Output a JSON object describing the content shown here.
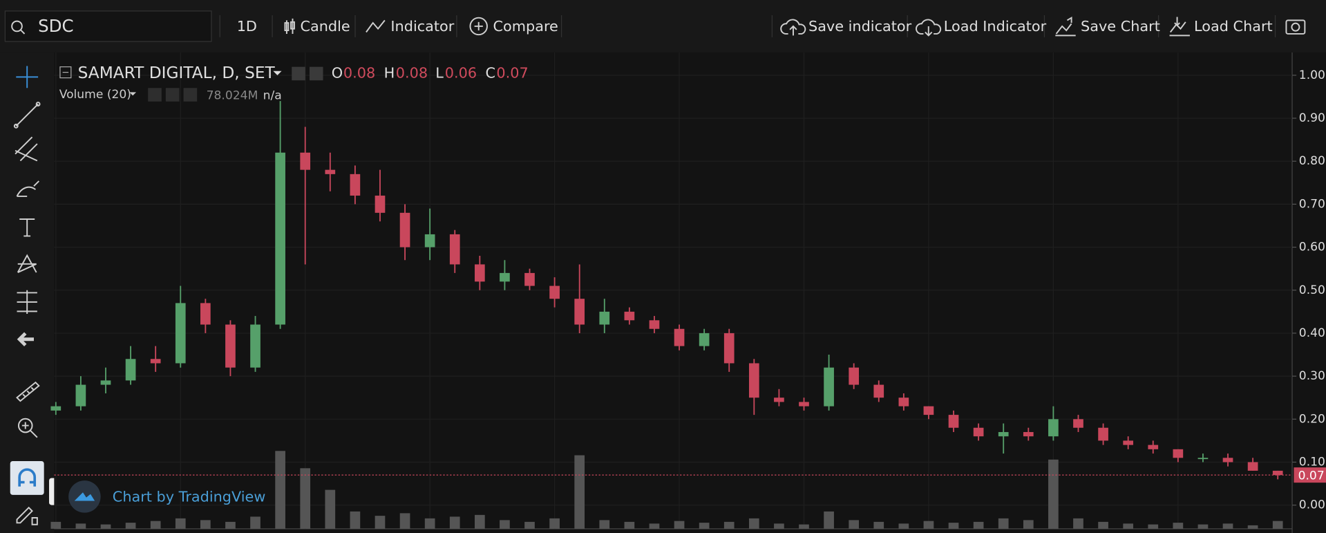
{
  "toolbar": {
    "symbol": "SDC",
    "interval": "1D",
    "chart_type": "Candle",
    "indicator": "Indicator",
    "compare": "Compare",
    "save_indicator": "Save indicator",
    "load_indicator": "Load Indicator",
    "save_chart": "Save Chart",
    "load_chart": "Load Chart"
  },
  "chart_data": {
    "type": "candlestick",
    "title": "SAMART DIGITAL, D, SET",
    "legend": {
      "o_label": "O",
      "open": 0.08,
      "h_label": "H",
      "high": 0.08,
      "l_label": "L",
      "low": 0.06,
      "c_label": "C",
      "close": 0.07
    },
    "volume_title": "Volume (20)",
    "volume_value": "78.024M",
    "volume_ma": "n/a",
    "open": [
      0.22,
      0.23,
      0.28,
      0.29,
      0.34,
      0.33,
      0.47,
      0.42,
      0.32,
      0.42,
      0.82,
      0.78,
      0.77,
      0.72,
      0.68,
      0.6,
      0.63,
      0.56,
      0.52,
      0.54,
      0.51,
      0.48,
      0.42,
      0.45,
      0.43,
      0.41,
      0.37,
      0.4,
      0.33,
      0.25,
      0.24,
      0.23,
      0.32,
      0.28,
      0.25,
      0.23,
      0.21,
      0.18,
      0.16,
      0.17,
      0.16,
      0.2,
      0.18,
      0.15,
      0.14,
      0.13,
      0.11,
      0.11,
      0.1,
      0.08
    ],
    "high": [
      0.24,
      0.3,
      0.32,
      0.37,
      0.37,
      0.51,
      0.48,
      0.43,
      0.44,
      0.94,
      0.88,
      0.82,
      0.79,
      0.78,
      0.7,
      0.69,
      0.64,
      0.58,
      0.57,
      0.55,
      0.53,
      0.56,
      0.48,
      0.46,
      0.44,
      0.42,
      0.41,
      0.41,
      0.34,
      0.27,
      0.25,
      0.35,
      0.33,
      0.29,
      0.26,
      0.23,
      0.22,
      0.19,
      0.19,
      0.18,
      0.23,
      0.21,
      0.19,
      0.16,
      0.15,
      0.13,
      0.12,
      0.12,
      0.11,
      0.08
    ],
    "low": [
      0.21,
      0.22,
      0.26,
      0.28,
      0.31,
      0.32,
      0.4,
      0.3,
      0.31,
      0.41,
      0.56,
      0.73,
      0.7,
      0.66,
      0.57,
      0.57,
      0.54,
      0.5,
      0.5,
      0.5,
      0.46,
      0.4,
      0.4,
      0.42,
      0.4,
      0.36,
      0.36,
      0.31,
      0.21,
      0.23,
      0.22,
      0.22,
      0.27,
      0.24,
      0.22,
      0.2,
      0.17,
      0.15,
      0.12,
      0.15,
      0.15,
      0.17,
      0.14,
      0.13,
      0.12,
      0.1,
      0.1,
      0.09,
      0.08,
      0.06
    ],
    "close": [
      0.23,
      0.28,
      0.29,
      0.34,
      0.33,
      0.47,
      0.42,
      0.32,
      0.42,
      0.82,
      0.78,
      0.77,
      0.72,
      0.68,
      0.6,
      0.63,
      0.56,
      0.52,
      0.54,
      0.51,
      0.48,
      0.42,
      0.45,
      0.43,
      0.41,
      0.37,
      0.4,
      0.33,
      0.25,
      0.24,
      0.23,
      0.32,
      0.28,
      0.25,
      0.23,
      0.21,
      0.18,
      0.16,
      0.17,
      0.16,
      0.2,
      0.18,
      0.15,
      0.14,
      0.13,
      0.11,
      0.11,
      0.1,
      0.08,
      0.07
    ],
    "volume": [
      8,
      6,
      5,
      7,
      9,
      12,
      10,
      8,
      14,
      90,
      70,
      45,
      20,
      15,
      18,
      12,
      14,
      16,
      10,
      8,
      12,
      85,
      10,
      8,
      6,
      9,
      7,
      8,
      12,
      6,
      5,
      20,
      10,
      8,
      6,
      9,
      7,
      8,
      12,
      10,
      80,
      12,
      8,
      6,
      5,
      7,
      5,
      6,
      4,
      9
    ],
    "up_color": "#56a06a",
    "down_color": "#c9475c",
    "volume_color": "#555555",
    "ylim": [
      -0.055,
      1.053
    ],
    "yticks": [
      {
        "value": 0,
        "label": "0.00"
      },
      {
        "value": 0.1,
        "label": "0.10"
      },
      {
        "value": 0.2,
        "label": "0.20"
      },
      {
        "value": 0.3,
        "label": "0.30"
      },
      {
        "value": 0.4,
        "label": "0.40"
      },
      {
        "value": 0.5,
        "label": "0.50"
      },
      {
        "value": 0.6,
        "label": "0.60"
      },
      {
        "value": 0.7,
        "label": "0.70"
      },
      {
        "value": 0.8,
        "label": "0.80"
      },
      {
        "value": 0.9,
        "label": "0.90"
      },
      {
        "value": 1,
        "label": "1.00"
      }
    ],
    "grid": true,
    "watermark": "Chart by TradingView"
  }
}
